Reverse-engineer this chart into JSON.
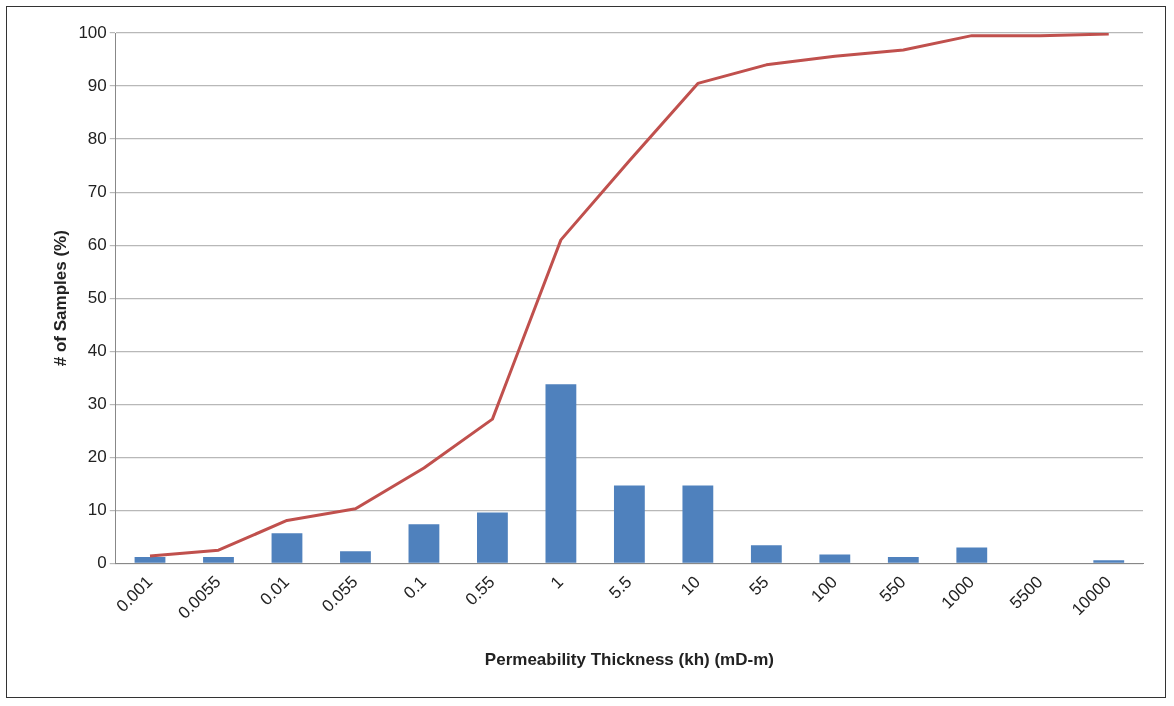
{
  "chart_data": {
    "type": "bar",
    "xlabel": "Permeability Thickness (kh) (mD-m)",
    "ylabel": "# of Samples (%)",
    "categories": [
      "0.001",
      "0.0055",
      "0.01",
      "0.055",
      "0.1",
      "0.55",
      "1",
      "5.5",
      "10",
      "55",
      "100",
      "550",
      "1000",
      "5500",
      "10000"
    ],
    "series": [
      {
        "color": "#4f81bd",
        "values": [
          1.2,
          1.2,
          5.7,
          2.3,
          7.4,
          9.6,
          33.8,
          14.7,
          14.7,
          3.4,
          1.7,
          1.2,
          3.0,
          0,
          0.6
        ]
      },
      {
        "type": "line",
        "color": "#c0504d",
        "values": [
          1.4,
          2.5,
          8.1,
          10.3,
          18,
          27.2,
          61,
          75.9,
          90.5,
          94,
          95.6,
          96.8,
          99.5,
          99.5,
          99.8
        ]
      }
    ],
    "ylim": [
      0,
      100
    ],
    "yticks": [
      0,
      10,
      20,
      30,
      40,
      50,
      60,
      70,
      80,
      90,
      100
    ],
    "grid": "y",
    "legend": false,
    "marker": "none",
    "line_style": "solid"
  }
}
